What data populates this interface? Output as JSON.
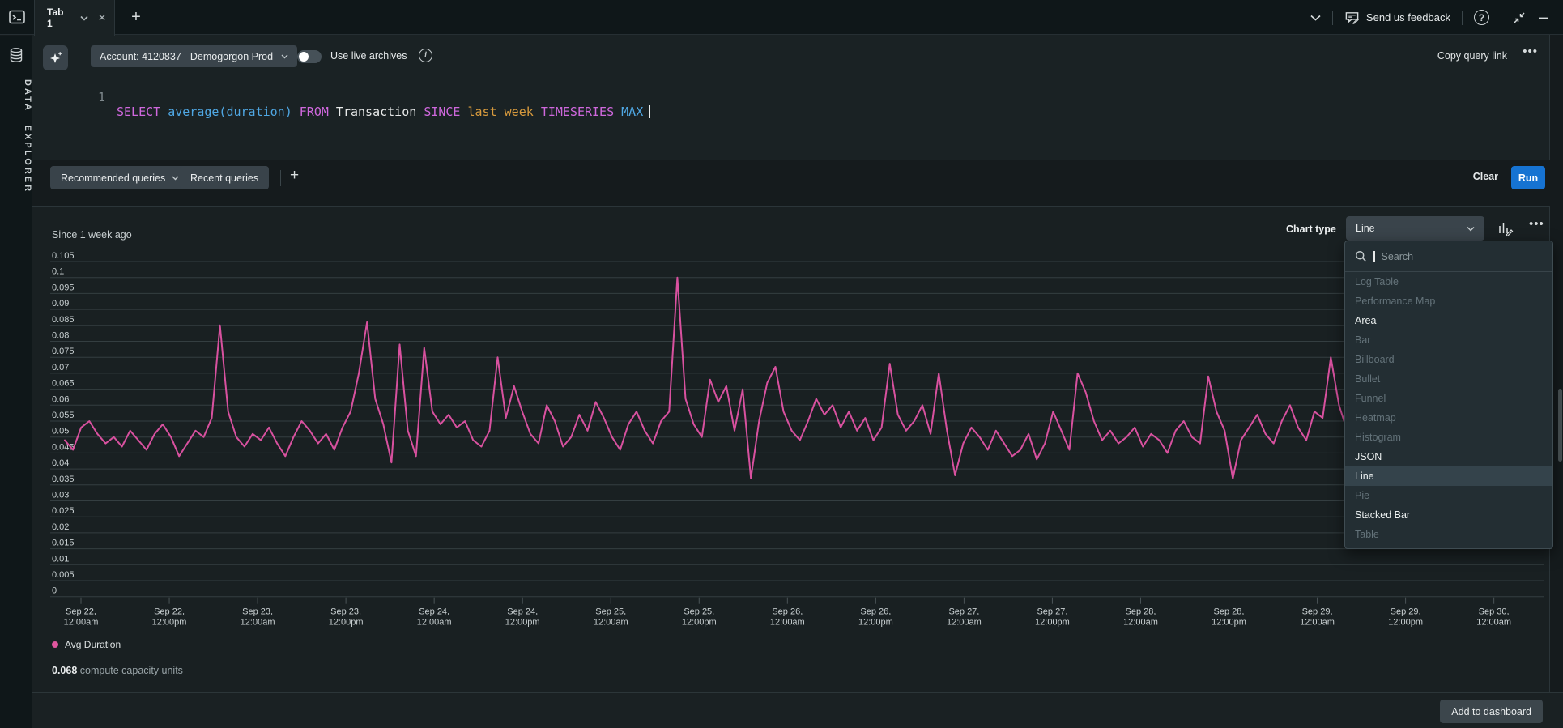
{
  "topbar": {
    "tab_label": "Tab 1",
    "feedback_label": "Send us feedback"
  },
  "sidebar": {
    "title": "DATA EXPLORER"
  },
  "query_panel": {
    "account_selector": "Account: 4120837 - Demogorgon Prod",
    "live_archives_label": "Use live archives",
    "copy_link_label": "Copy query link",
    "more_label": "...",
    "line_number": "1",
    "query_tokens": [
      {
        "text": "SELECT",
        "type": "keyword"
      },
      {
        "text": " ",
        "type": "plain"
      },
      {
        "text": "average(duration)",
        "type": "function"
      },
      {
        "text": " ",
        "type": "plain"
      },
      {
        "text": "FROM",
        "type": "keyword"
      },
      {
        "text": " Transaction ",
        "type": "plain"
      },
      {
        "text": "SINCE",
        "type": "keyword"
      },
      {
        "text": " ",
        "type": "plain"
      },
      {
        "text": "last week",
        "type": "string"
      },
      {
        "text": " ",
        "type": "plain"
      },
      {
        "text": "TIMESERIES",
        "type": "keyword"
      },
      {
        "text": " ",
        "type": "plain"
      },
      {
        "text": "MAX",
        "type": "function"
      }
    ]
  },
  "query_toolbar": {
    "recommended_label": "Recommended queries",
    "recent_label": "Recent queries",
    "clear_label": "Clear",
    "run_label": "Run"
  },
  "chart_panel": {
    "chart_type_label": "Chart type",
    "chart_type_value": "Line",
    "title": "Since 1 week ago",
    "legend": [
      {
        "label": "Avg Duration",
        "color": "#e0569f"
      }
    ],
    "footnote_value": "0.068",
    "footnote_text": "compute capacity units"
  },
  "chart_type_menu": {
    "search_placeholder": "Search",
    "items": [
      {
        "label": "Log Table",
        "enabled": false,
        "selected": false
      },
      {
        "label": "Performance Map",
        "enabled": false,
        "selected": false
      },
      {
        "label": "Area",
        "enabled": true,
        "selected": false
      },
      {
        "label": "Bar",
        "enabled": false,
        "selected": false
      },
      {
        "label": "Billboard",
        "enabled": false,
        "selected": false
      },
      {
        "label": "Bullet",
        "enabled": false,
        "selected": false
      },
      {
        "label": "Funnel",
        "enabled": false,
        "selected": false
      },
      {
        "label": "Heatmap",
        "enabled": false,
        "selected": false
      },
      {
        "label": "Histogram",
        "enabled": false,
        "selected": false
      },
      {
        "label": "JSON",
        "enabled": true,
        "selected": false
      },
      {
        "label": "Line",
        "enabled": true,
        "selected": true
      },
      {
        "label": "Pie",
        "enabled": false,
        "selected": false
      },
      {
        "label": "Stacked Bar",
        "enabled": true,
        "selected": false
      },
      {
        "label": "Table",
        "enabled": false,
        "selected": false
      }
    ]
  },
  "footer": {
    "add_to_dashboard_label": "Add to dashboard"
  },
  "colors": {
    "series_pink": "#d8519f",
    "run_button_blue": "#1673d2",
    "gridline": "#343e41"
  },
  "chart_data": {
    "type": "line",
    "title": "Since 1 week ago",
    "xlabel": "",
    "ylabel": "",
    "ylim": [
      0,
      0.105
    ],
    "grid": true,
    "legend_position": "bottom-left",
    "y_axis": {
      "tick_labels": [
        "0.105",
        "0.1",
        "0.095",
        "0.09",
        "0.085",
        "0.08",
        "0.075",
        "0.07",
        "0.065",
        "0.06",
        "0.055",
        "0.05",
        "0.045",
        "0.04",
        "0.035",
        "0.03",
        "0.025",
        "0.02",
        "0.015",
        "0.01",
        "0.005",
        "0"
      ]
    },
    "x_axis": {
      "interval": "12 hours",
      "tick_labels": [
        {
          "line1": "Sep 22,",
          "line2": "12:00am"
        },
        {
          "line1": "Sep 22,",
          "line2": "12:00pm"
        },
        {
          "line1": "Sep 23,",
          "line2": "12:00am"
        },
        {
          "line1": "Sep 23,",
          "line2": "12:00pm"
        },
        {
          "line1": "Sep 24,",
          "line2": "12:00am"
        },
        {
          "line1": "Sep 24,",
          "line2": "12:00pm"
        },
        {
          "line1": "Sep 25,",
          "line2": "12:00am"
        },
        {
          "line1": "Sep 25,",
          "line2": "12:00pm"
        },
        {
          "line1": "Sep 26,",
          "line2": "12:00am"
        },
        {
          "line1": "Sep 26,",
          "line2": "12:00pm"
        },
        {
          "line1": "Sep 27,",
          "line2": "12:00am"
        },
        {
          "line1": "Sep 27,",
          "line2": "12:00pm"
        },
        {
          "line1": "Sep 28,",
          "line2": "12:00am"
        },
        {
          "line1": "Sep 28,",
          "line2": "12:00pm"
        },
        {
          "line1": "Sep 29,",
          "line2": "12:00am"
        },
        {
          "line1": "Sep 29,",
          "line2": "12:00pm"
        },
        {
          "line1": "Sep 30,",
          "line2": "12:00am"
        }
      ]
    },
    "series": [
      {
        "name": "Avg Duration",
        "color": "#d8519f",
        "values": [
          0.049,
          0.046,
          0.053,
          0.055,
          0.051,
          0.048,
          0.05,
          0.047,
          0.052,
          0.049,
          0.046,
          0.051,
          0.054,
          0.05,
          0.044,
          0.048,
          0.052,
          0.05,
          0.056,
          0.085,
          0.058,
          0.05,
          0.047,
          0.051,
          0.049,
          0.053,
          0.048,
          0.044,
          0.05,
          0.055,
          0.052,
          0.048,
          0.051,
          0.046,
          0.053,
          0.058,
          0.07,
          0.086,
          0.062,
          0.054,
          0.042,
          0.079,
          0.052,
          0.044,
          0.078,
          0.058,
          0.054,
          0.057,
          0.053,
          0.055,
          0.049,
          0.047,
          0.052,
          0.075,
          0.056,
          0.066,
          0.058,
          0.051,
          0.048,
          0.06,
          0.055,
          0.047,
          0.05,
          0.057,
          0.052,
          0.061,
          0.056,
          0.05,
          0.046,
          0.054,
          0.058,
          0.052,
          0.048,
          0.055,
          0.058,
          0.1,
          0.062,
          0.054,
          0.05,
          0.068,
          0.061,
          0.066,
          0.052,
          0.065,
          0.037,
          0.055,
          0.067,
          0.072,
          0.058,
          0.052,
          0.049,
          0.055,
          0.062,
          0.057,
          0.06,
          0.053,
          0.058,
          0.052,
          0.056,
          0.049,
          0.053,
          0.073,
          0.057,
          0.052,
          0.055,
          0.06,
          0.051,
          0.07,
          0.052,
          0.038,
          0.048,
          0.053,
          0.05,
          0.046,
          0.052,
          0.048,
          0.044,
          0.046,
          0.051,
          0.043,
          0.048,
          0.058,
          0.052,
          0.046,
          0.07,
          0.064,
          0.055,
          0.049,
          0.052,
          0.048,
          0.05,
          0.053,
          0.047,
          0.051,
          0.049,
          0.045,
          0.052,
          0.055,
          0.05,
          0.048,
          0.069,
          0.058,
          0.052,
          0.037,
          0.049,
          0.053,
          0.057,
          0.051,
          0.048,
          0.055,
          0.06,
          0.053,
          0.049,
          0.058,
          0.056,
          0.075,
          0.06,
          0.052,
          0.048,
          0.053,
          0.058,
          0.052,
          0.062,
          0.056,
          0.05,
          0.046,
          0.051,
          0.047,
          0.043,
          0.049,
          0.053,
          0.046,
          0.04,
          0.052,
          0.055,
          0.047
        ]
      }
    ]
  }
}
